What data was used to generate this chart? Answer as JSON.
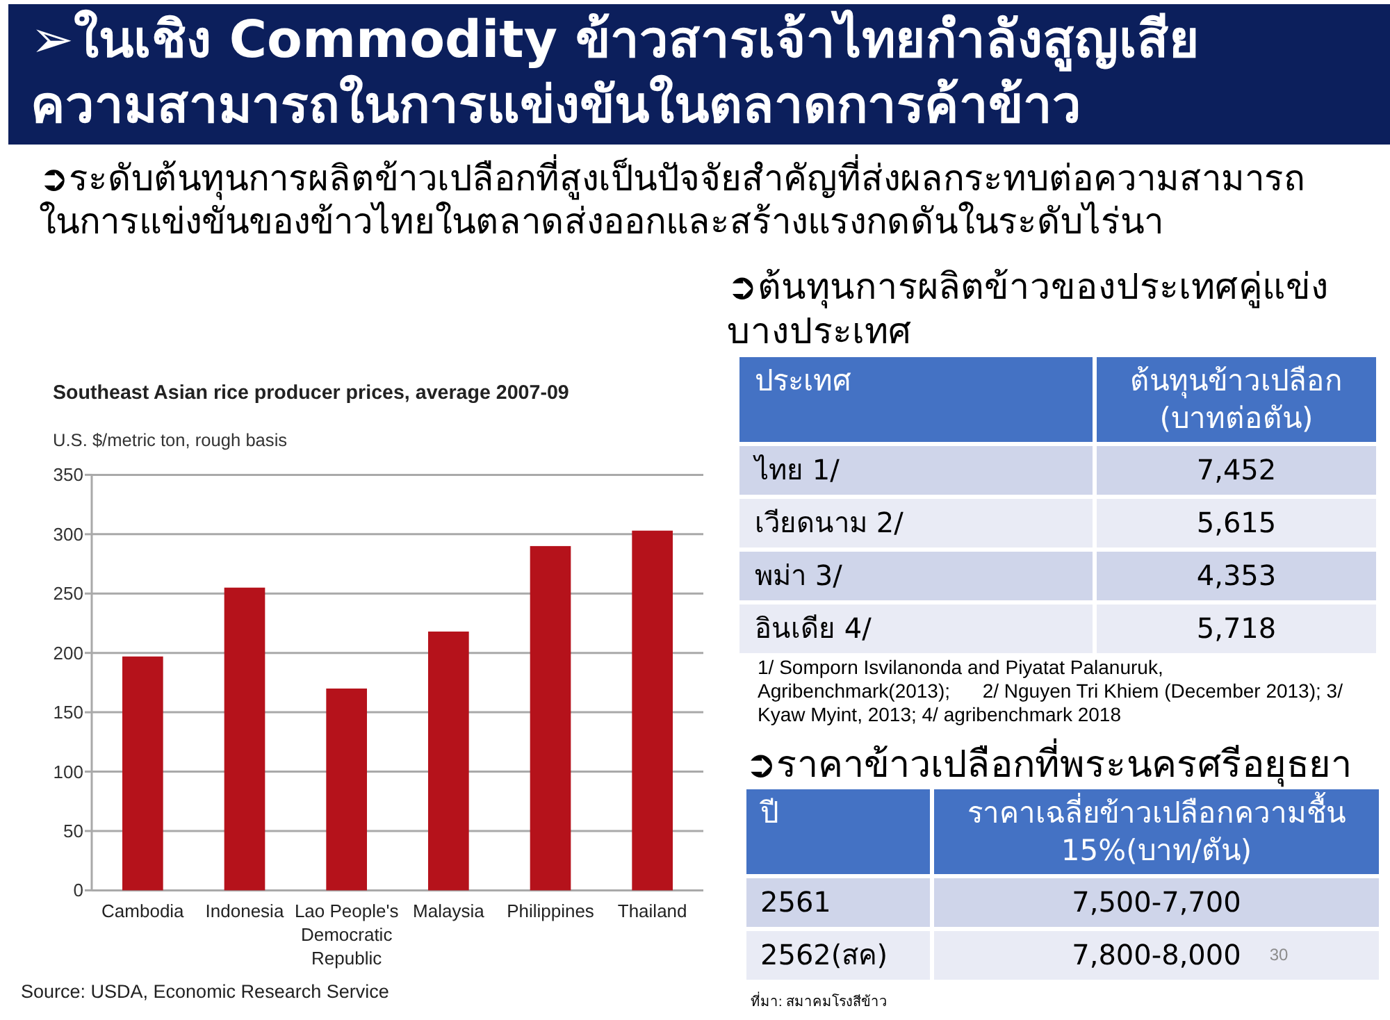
{
  "chart_data": [
    {
      "type": "other",
      "title": "➢ในเชิง Commodity ข้าวสารเจ้าไทยกำลังสูญเสีย\nความสามารถในการแข่งขันในตลาดการค้าข้าว",
      "subtitle": "➲ระดับต้นทุนการผลิตข้าวเปลือกที่สูงเป็นปัจจัยสำคัญที่ส่งผลกระทบต่อความสามารถ\nในการแข่งขันของข้าวไทยในตลาดส่งออกและสร้างแรงกดดันในระดับไร่นา",
      "annotations": [
        "30"
      ]
    },
    {
      "type": "bar",
      "title": "Southeast Asian rice producer prices, average 2007-09",
      "ylabel": "U.S. $/metric ton, rough basis",
      "categories": [
        "Cambodia",
        "Indonesia",
        "Lao People's Democratic Republic",
        "Malaysia",
        "Philippines",
        "Thailand"
      ],
      "values": [
        197,
        255,
        170,
        218,
        290,
        303
      ],
      "color": "#b5121b",
      "ylim": [
        0,
        350
      ],
      "yticks": [
        0,
        50,
        100,
        150,
        200,
        250,
        300,
        350
      ],
      "grid": "y",
      "annotations": [
        "Source: USDA, Economic Research Service"
      ]
    },
    {
      "type": "other",
      "title": "➲ต้นทุนการผลิตข้าวของประเทศคู่แข่ง\nบางประเทศ",
      "categories": [
        "ประเทศ",
        "ต้นทุนข้าวเปลือก\n(บาทต่อตัน)"
      ],
      "cell_labels": [
        [
          "ไทย 1/",
          "7,452"
        ],
        [
          "เวียดนาม 2/",
          "5,615"
        ],
        [
          "พม่า 3/",
          "4,353"
        ],
        [
          "อินเดีย 4/",
          "5,718"
        ]
      ],
      "annotations": [
        "1/ Somporn Isvilanonda and Piyatat Palanuruk,\nAgribenchmark(2013);      2/ Nguyen Tri Khiem (December 2013); 3/\nKyaw Myint, 2013; 4/ agribenchmark 2018"
      ]
    },
    {
      "type": "other",
      "title": "➲ราคาข้าวเปลือกที่พระนครศรีอยุธยา",
      "categories": [
        "ปี",
        "ราคาเฉลี่ยข้าวเปลือกความชื้น\n15%(บาท/ตัน)"
      ],
      "cell_labels": [
        [
          "2561",
          "7,500-7,700"
        ],
        [
          "2562(สค)",
          "7,800-8,000"
        ]
      ],
      "annotations": [
        "ที่มา: สมาคมโรงสีข้าว"
      ]
    }
  ]
}
